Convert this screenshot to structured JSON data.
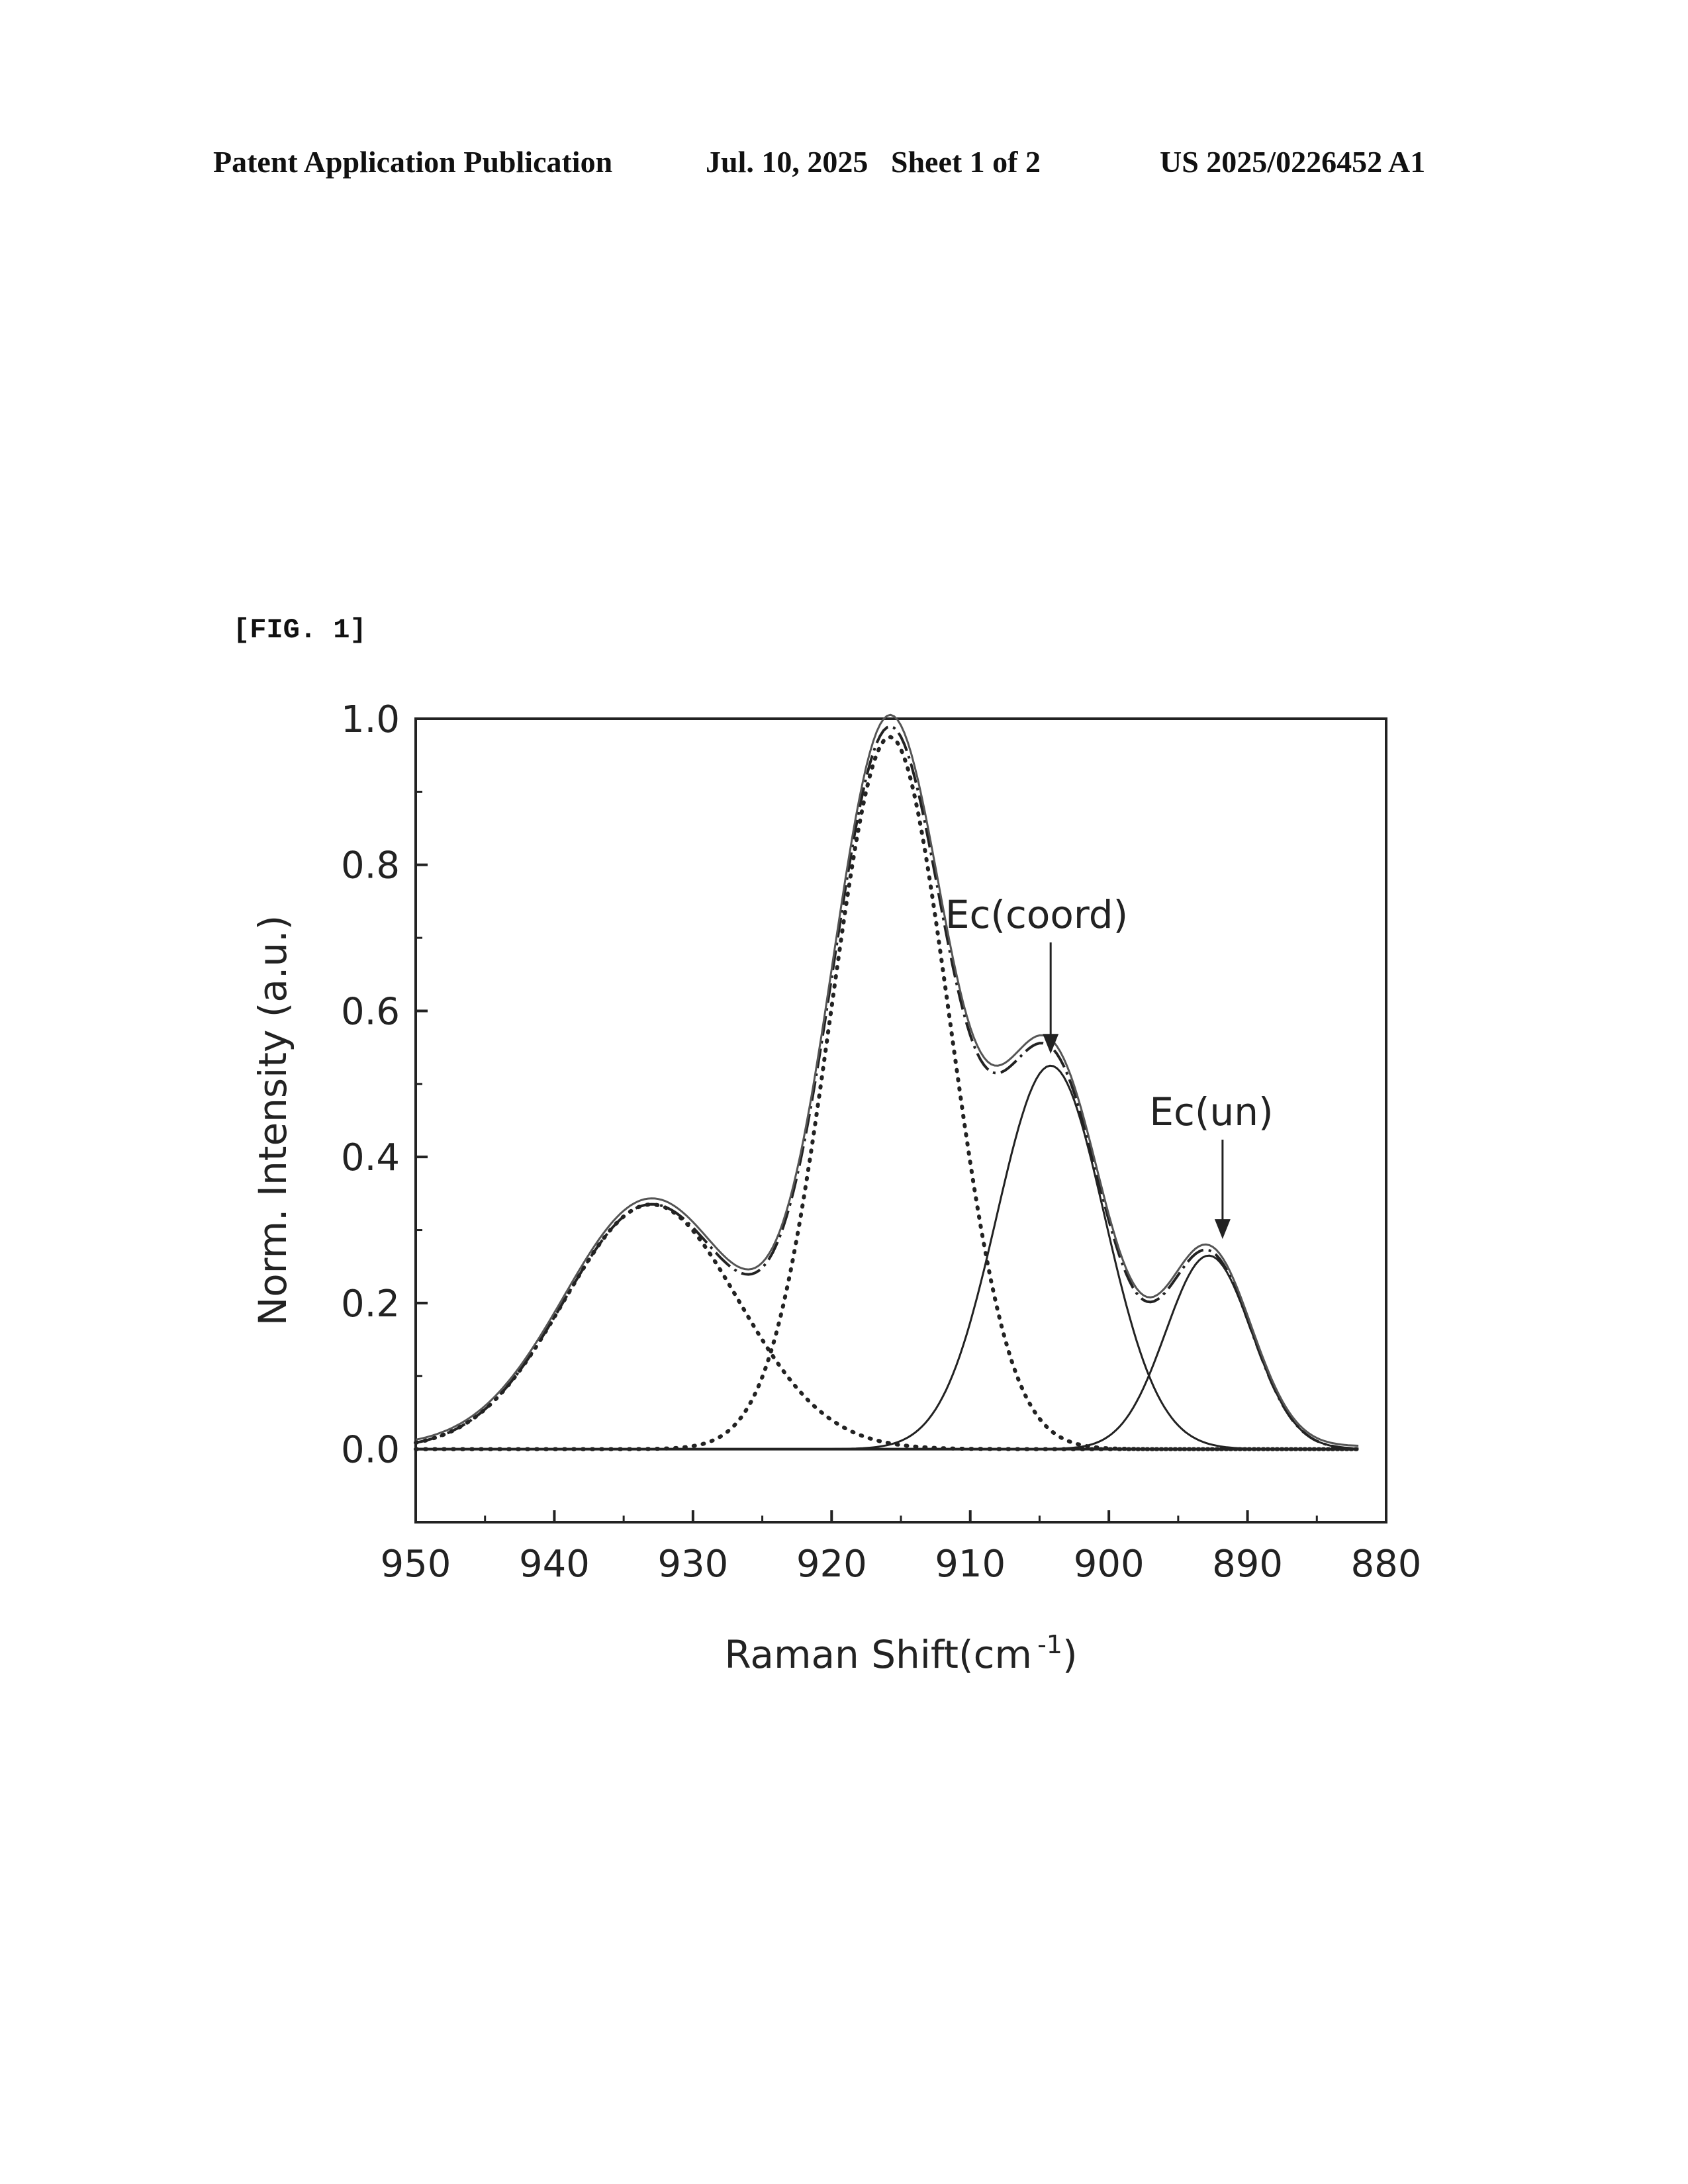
{
  "header": {
    "left": "Patent Application Publication",
    "middle": "Jul. 10, 2025   Sheet 1 of 2",
    "right": "US 2025/0226452 A1"
  },
  "figure_label": "[FIG. 1]",
  "chart_data": {
    "type": "line",
    "title": "",
    "xlabel": "Raman Shift(cm",
    "xlabel_sup": "-1",
    "xlabel_close": ")",
    "ylabel": "Norm. Intensity (a.u.)",
    "xlim": [
      950,
      880
    ],
    "ylim": [
      -0.1,
      1.0
    ],
    "x_reversed": true,
    "x_ticks": [
      950,
      940,
      930,
      920,
      910,
      900,
      890,
      880
    ],
    "x_tick_labels": [
      "950",
      "940",
      "930",
      "920",
      "910",
      "900",
      "890",
      "880"
    ],
    "y_ticks": [
      0.0,
      0.2,
      0.4,
      0.6,
      0.8,
      1.0
    ],
    "y_tick_labels": [
      "0.0",
      "0.2",
      "0.4",
      "0.6",
      "0.8",
      "1.0"
    ],
    "grid": false,
    "x_range_plotted": [
      950,
      882
    ],
    "components": [
      {
        "style": "dotted",
        "center": 933,
        "amplitude": 0.335,
        "sigma": 6.3
      },
      {
        "style": "dotted",
        "center": 915.8,
        "amplitude": 0.975,
        "sigma": 4.3
      },
      {
        "style": "solid",
        "center": 904.2,
        "amplitude": 0.525,
        "sigma": 3.9
      },
      {
        "style": "solid",
        "center": 892.8,
        "amplitude": 0.265,
        "sigma": 3.1
      }
    ],
    "annotations": [
      {
        "text": "Ec(coord)",
        "x": 904.2,
        "y": 0.525
      },
      {
        "text": "Ec(un)",
        "x": 891.8,
        "y": 0.275
      }
    ]
  }
}
